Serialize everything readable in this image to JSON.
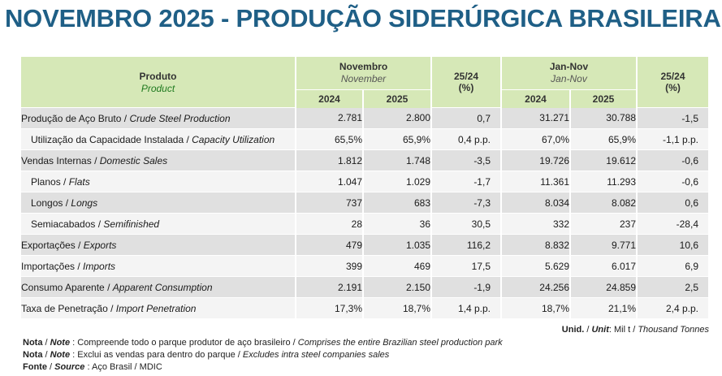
{
  "title": "NOVEMBRO 2025 - PRODUÇÃO SIDERÚRGICA BRASILEIRA",
  "header": {
    "produto": "Produto",
    "product": "Product",
    "novembro": "Novembro",
    "november": "November",
    "var1": "25/24",
    "var1_unit": "(%)",
    "jannov": "Jan-Nov",
    "jannov_en": "Jan-Nov",
    "var2": "25/24",
    "var2_unit": "(%)",
    "y2024a": "2024",
    "y2025a": "2025",
    "y2024b": "2024",
    "y2025b": "2025"
  },
  "rows": [
    {
      "pt": "Produção de Aço Bruto",
      "en": "Crude Steel Production",
      "n24": "2.781",
      "n25": "2.800",
      "nv": "0,7",
      "j24": "31.271",
      "j25": "30.788",
      "jv": "-1,5"
    },
    {
      "pt": "Utilização da Capacidade Instalada",
      "en": "Capacity Utilization",
      "n24": "65,5%",
      "n25": "65,9%",
      "nv": "0,4 p.p.",
      "j24": "67,0%",
      "j25": "65,9%",
      "jv": "-1,1 p.p."
    },
    {
      "pt": "Vendas Internas",
      "en": "Domestic Sales",
      "n24": "1.812",
      "n25": "1.748",
      "nv": "-3,5",
      "j24": "19.726",
      "j25": "19.612",
      "jv": "-0,6"
    },
    {
      "pt": "Planos",
      "en": "Flats",
      "n24": "1.047",
      "n25": "1.029",
      "nv": "-1,7",
      "j24": "11.361",
      "j25": "11.293",
      "jv": "-0,6"
    },
    {
      "pt": "Longos",
      "en": "Longs",
      "n24": "737",
      "n25": "683",
      "nv": "-7,3",
      "j24": "8.034",
      "j25": "8.082",
      "jv": "0,6"
    },
    {
      "pt": "Semiacabados",
      "en": "Semifinished",
      "n24": "28",
      "n25": "36",
      "nv": "30,5",
      "j24": "332",
      "j25": "237",
      "jv": "-28,4"
    },
    {
      "pt": "Exportações",
      "en": "Exports",
      "n24": "479",
      "n25": "1.035",
      "nv": "116,2",
      "j24": "8.832",
      "j25": "9.771",
      "jv": "10,6"
    },
    {
      "pt": "Importações",
      "en": "Imports",
      "n24": "399",
      "n25": "469",
      "nv": "17,5",
      "j24": "5.629",
      "j25": "6.017",
      "jv": "6,9"
    },
    {
      "pt": "Consumo Aparente",
      "en": "Apparent Consumption",
      "n24": "2.191",
      "n25": "2.150",
      "nv": "-1,9",
      "j24": "24.256",
      "j25": "24.859",
      "jv": "2,5"
    },
    {
      "pt": "Taxa de Penetração",
      "en": "Import Penetration",
      "n24": "17,3%",
      "n25": "18,7%",
      "nv": "1,4 p.p.",
      "j24": "18,7%",
      "j25": "21,1%",
      "jv": "2,4 p.p."
    }
  ],
  "unit": {
    "label": "Unid.",
    "sep": " / ",
    "label_en": "Unit",
    "colon": ": ",
    "value": "Mil t",
    "value_sep": " / ",
    "value_en": "Thousand Tonnes"
  },
  "notes": [
    {
      "label": "Nota",
      "label_en": "Note",
      "text": "Compreende todo o parque produtor de aço brasileiro",
      "text_en": "Comprises the entire Brazilian steel production park"
    },
    {
      "label": "Nota",
      "label_en": "Note",
      "text": "Exclui as vendas para dentro do parque",
      "text_en": "Excludes intra steel companies sales"
    },
    {
      "label": "Fonte",
      "label_en": "Source",
      "text": "Aço Brasil / MDIC",
      "text_en": ""
    }
  ]
}
